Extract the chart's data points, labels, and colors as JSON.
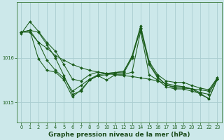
{
  "background_color": "#cce8ea",
  "grid_color": "#aacdd0",
  "line_color": "#1a5c1a",
  "marker_color": "#1a5c1a",
  "title": "Graphe pression niveau de la mer (hPa)",
  "title_fontsize": 6.5,
  "xlim": [
    -0.5,
    23.5
  ],
  "ylim": [
    1014.55,
    1017.25
  ],
  "yticks": [
    1015,
    1016
  ],
  "xticks": [
    0,
    1,
    2,
    3,
    4,
    5,
    6,
    7,
    8,
    9,
    10,
    11,
    12,
    13,
    14,
    15,
    16,
    17,
    18,
    19,
    20,
    21,
    22,
    23
  ],
  "series": [
    [
      1016.55,
      1016.82,
      1016.6,
      1016.35,
      1016.15,
      1015.85,
      1015.52,
      1015.48,
      1015.62,
      1015.68,
      1015.65,
      1015.67,
      1015.68,
      1016.05,
      1016.72,
      1015.92,
      1015.62,
      1015.48,
      1015.45,
      1015.45,
      1015.38,
      1015.32,
      1015.28,
      1015.55
    ],
    [
      1016.58,
      1016.62,
      1016.35,
      1015.95,
      1015.72,
      1015.55,
      1015.25,
      1015.38,
      1015.52,
      1015.62,
      1015.65,
      1015.67,
      1015.7,
      1016.02,
      1016.65,
      1015.85,
      1015.55,
      1015.4,
      1015.32,
      1015.32,
      1015.3,
      1015.22,
      1015.18,
      1015.55
    ],
    [
      1016.58,
      1016.62,
      1016.58,
      1016.3,
      1016.0,
      1015.6,
      1015.18,
      1015.25,
      1015.5,
      1015.6,
      1015.62,
      1015.65,
      1015.65,
      1016.0,
      1016.68,
      1015.88,
      1015.58,
      1015.38,
      1015.35,
      1015.35,
      1015.3,
      1015.18,
      1015.08,
      1015.52
    ],
    [
      1016.58,
      1016.62,
      1015.98,
      1015.72,
      1015.68,
      1015.5,
      1015.12,
      1015.28,
      1015.5,
      1015.6,
      1015.5,
      1015.62,
      1015.62,
      1015.68,
      1016.6,
      1015.62,
      1015.5,
      1015.35,
      1015.3,
      1015.3,
      1015.25,
      1015.2,
      1015.08,
      1015.52
    ]
  ],
  "trend_line": [
    1016.58,
    1016.58,
    1016.35,
    1016.22,
    1016.05,
    1015.95,
    1015.85,
    1015.78,
    1015.72,
    1015.68,
    1015.65,
    1015.62,
    1015.6,
    1015.58,
    1015.55,
    1015.52,
    1015.48,
    1015.42,
    1015.38,
    1015.35,
    1015.3,
    1015.28,
    1015.25,
    1015.52
  ]
}
